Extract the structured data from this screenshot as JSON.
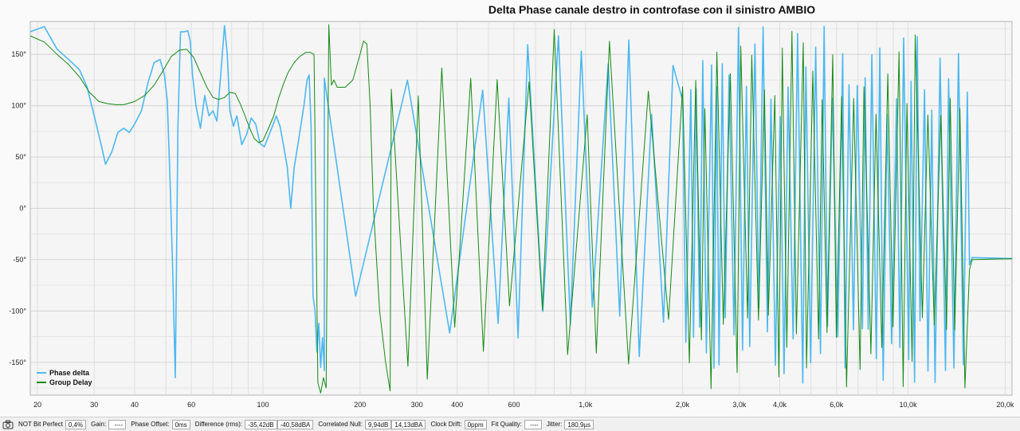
{
  "chart_data": {
    "type": "line",
    "title": "Delta Phase canale destro in controfase con il sinistro AMBIO",
    "x_scale": "log",
    "xlim": [
      19,
      21000
    ],
    "ylim": [
      -182,
      182
    ],
    "x_ticks": [
      {
        "v": 20,
        "label": "20"
      },
      {
        "v": 30,
        "label": "30"
      },
      {
        "v": 40,
        "label": "40"
      },
      {
        "v": 60,
        "label": "60"
      },
      {
        "v": 100,
        "label": "100"
      },
      {
        "v": 200,
        "label": "200"
      },
      {
        "v": 300,
        "label": "300"
      },
      {
        "v": 400,
        "label": "400"
      },
      {
        "v": 600,
        "label": "600"
      },
      {
        "v": 1000,
        "label": "1,0k"
      },
      {
        "v": 2000,
        "label": "2,0k"
      },
      {
        "v": 3000,
        "label": "3,0k"
      },
      {
        "v": 4000,
        "label": "4,0k"
      },
      {
        "v": 6000,
        "label": "6,0k"
      },
      {
        "v": 10000,
        "label": "10,0k"
      },
      {
        "v": 20000,
        "label": "20,0k"
      }
    ],
    "y_ticks": [
      {
        "v": 150,
        "label": "150°"
      },
      {
        "v": 100,
        "label": "100°"
      },
      {
        "v": 50,
        "label": "50°"
      },
      {
        "v": 0,
        "label": "0°"
      },
      {
        "v": -50,
        "label": "-50°"
      },
      {
        "v": -100,
        "label": "-100°"
      },
      {
        "v": -150,
        "label": "-150°"
      }
    ],
    "grid": true,
    "legend_position": "bottom-left",
    "series": [
      {
        "name": "Phase delta",
        "color": "#4db8f0",
        "points": [
          [
            19,
            172
          ],
          [
            21,
            177
          ],
          [
            23,
            155
          ],
          [
            25,
            145
          ],
          [
            27,
            135
          ],
          [
            28.5,
            118
          ],
          [
            30,
            90
          ],
          [
            31.5,
            62
          ],
          [
            32.5,
            43
          ],
          [
            34,
            55
          ],
          [
            35.5,
            74
          ],
          [
            37,
            78
          ],
          [
            38.5,
            74
          ],
          [
            40,
            82
          ],
          [
            42,
            95
          ],
          [
            44,
            122
          ],
          [
            46,
            142
          ],
          [
            48,
            145
          ],
          [
            49.5,
            130
          ],
          [
            50.5,
            105
          ],
          [
            51.5,
            30
          ],
          [
            52.5,
            -60
          ],
          [
            53.5,
            -165
          ],
          [
            54.5,
            80
          ],
          [
            55.5,
            172
          ],
          [
            57,
            172
          ],
          [
            58.5,
            173
          ],
          [
            59.5,
            163
          ],
          [
            60.5,
            130
          ],
          [
            62,
            100
          ],
          [
            64,
            78
          ],
          [
            66,
            110
          ],
          [
            68,
            90
          ],
          [
            70,
            95
          ],
          [
            72,
            85
          ],
          [
            74,
            130
          ],
          [
            76,
            178
          ],
          [
            77.5,
            150
          ],
          [
            79,
            95
          ],
          [
            81,
            80
          ],
          [
            83,
            90
          ],
          [
            86,
            62
          ],
          [
            89,
            72
          ],
          [
            92,
            88
          ],
          [
            95,
            82
          ],
          [
            98,
            63
          ],
          [
            101,
            60
          ],
          [
            104,
            70
          ],
          [
            107,
            80
          ],
          [
            110,
            90
          ],
          [
            113,
            80
          ],
          [
            116,
            60
          ],
          [
            119,
            40
          ],
          [
            122,
            0
          ],
          [
            125,
            40
          ],
          [
            128,
            60
          ],
          [
            131,
            80
          ],
          [
            134,
            100
          ],
          [
            137,
            125
          ],
          [
            139,
            130
          ],
          [
            141,
            80
          ],
          [
            143,
            -85
          ],
          [
            145,
            -100
          ],
          [
            147,
            -140
          ],
          [
            149,
            -112
          ],
          [
            151,
            -155
          ],
          [
            153,
            -126
          ],
          [
            155,
            -158
          ]
        ],
        "oscillation": [
          {
            "from": 155,
            "to": 480,
            "period": 0.115,
            "upper": 178,
            "lower": -135
          },
          {
            "from": 480,
            "to": 2000,
            "period": 0.038,
            "upper": 178,
            "lower": -178
          },
          {
            "from": 2000,
            "to": 15500,
            "period": 0.012,
            "upper": 178,
            "lower": -178
          }
        ],
        "tail": [
          [
            15500,
            -55
          ],
          [
            15800,
            -48
          ],
          [
            21000,
            -49
          ]
        ]
      },
      {
        "name": "Group Delay",
        "color": "#158a15",
        "points": [
          [
            19,
            168
          ],
          [
            21,
            162
          ],
          [
            23,
            150
          ],
          [
            25,
            140
          ],
          [
            27,
            128
          ],
          [
            29,
            113
          ],
          [
            31,
            104
          ],
          [
            33,
            102
          ],
          [
            35,
            101
          ],
          [
            37,
            101
          ],
          [
            40,
            104
          ],
          [
            43,
            110
          ],
          [
            46,
            120
          ],
          [
            49,
            134
          ],
          [
            52,
            148
          ],
          [
            55,
            154
          ],
          [
            58,
            155
          ],
          [
            61,
            147
          ],
          [
            64,
            132
          ],
          [
            67,
            118
          ],
          [
            70,
            108
          ],
          [
            73,
            106
          ],
          [
            76,
            108
          ],
          [
            79,
            113
          ],
          [
            82,
            112
          ],
          [
            85,
            102
          ],
          [
            88,
            90
          ],
          [
            91,
            78
          ],
          [
            94,
            68
          ],
          [
            97,
            64
          ],
          [
            100,
            66
          ],
          [
            104,
            78
          ],
          [
            108,
            90
          ],
          [
            112,
            108
          ],
          [
            116,
            122
          ],
          [
            120,
            133
          ],
          [
            125,
            142
          ],
          [
            130,
            148
          ],
          [
            136,
            152
          ],
          [
            140,
            152
          ],
          [
            144,
            150
          ],
          [
            148,
            -170
          ],
          [
            151,
            -180
          ],
          [
            154,
            -165
          ],
          [
            157,
            -175
          ],
          [
            160,
            179
          ],
          [
            163,
            120
          ],
          [
            166,
            125
          ],
          [
            170,
            118
          ],
          [
            180,
            118
          ],
          [
            190,
            125
          ],
          [
            200,
            150
          ],
          [
            205,
            163
          ],
          [
            210,
            160
          ],
          [
            215,
            100
          ],
          [
            220,
            0
          ],
          [
            230,
            -100
          ],
          [
            240,
            -150
          ],
          [
            248,
            -178
          ]
        ],
        "oscillation": [
          {
            "from": 250,
            "to": 2000,
            "period": 0.045,
            "upper": 178,
            "lower": -178
          },
          {
            "from": 2000,
            "to": 15500,
            "period": 0.016,
            "upper": 178,
            "lower": -178
          }
        ],
        "tail": [
          [
            15500,
            -60
          ],
          [
            15800,
            -50
          ],
          [
            21000,
            -49
          ]
        ]
      }
    ]
  },
  "status_bar": {
    "camera_icon": "camera-icon",
    "bit_perfect_label": "NOT Bit Perfect",
    "bit_perfect_value": "0,4%",
    "gain_label": "Gain:",
    "gain_value": "----",
    "phase_offset_label": "Phase Offset:",
    "phase_offset_value": "0ms",
    "difference_label": "Difference (rms):",
    "difference_value_db": "-35,42dB",
    "difference_value_dba": "-40,58dBA",
    "correlated_null_label": "Correlated Null:",
    "correlated_null_db": "9,94dB",
    "correlated_null_dba": "14,13dBA",
    "clock_drift_label": "Clock Drift:",
    "clock_drift_value": "0ppm",
    "fit_quality_label": "Fit Quality:",
    "fit_quality_value": "----",
    "jitter_label": "Jitter:",
    "jitter_value": "180,9µs"
  }
}
